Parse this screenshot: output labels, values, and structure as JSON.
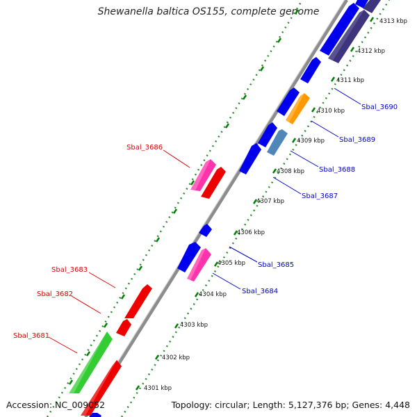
{
  "title": "Shewanella baltica OS155, complete genome",
  "accession": "Accession: NC_009052",
  "summary": "Topology: circular; Length: 5,127,376 bp; Genes: 4,448",
  "colors": {
    "backbone": "#909090",
    "tick_outer": "#008000",
    "tick_dots": "#2e8b2e",
    "label_forward": "#dd0000",
    "label_reverse": "#0000cc",
    "gene_red": "#ee0000",
    "gene_green": "#33cc33",
    "gene_magenta": "#ff33aa",
    "gene_blue": "#0000ee",
    "gene_orange": "#ff9900",
    "gene_steel": "#4f87b8",
    "gene_purple": "#3d347d"
  },
  "kbp_ticks": [
    "4301 kbp",
    "4302 kbp",
    "4303 kbp",
    "4304 kbp",
    "4305 kbp",
    "4306 kbp",
    "4307 kbp",
    "4308 kbp",
    "4309 kbp",
    "4310 kbp",
    "4311 kbp",
    "4312 kbp",
    "4313 kbp"
  ],
  "labels_forward": [
    "Sbal_3686",
    "Sbal_3683",
    "Sbal_3682",
    "Sbal_3681"
  ],
  "labels_reverse": [
    "Sbal_3690",
    "Sbal_3689",
    "Sbal_3688",
    "Sbal_3687",
    "Sbal_3685",
    "Sbal_3684"
  ]
}
